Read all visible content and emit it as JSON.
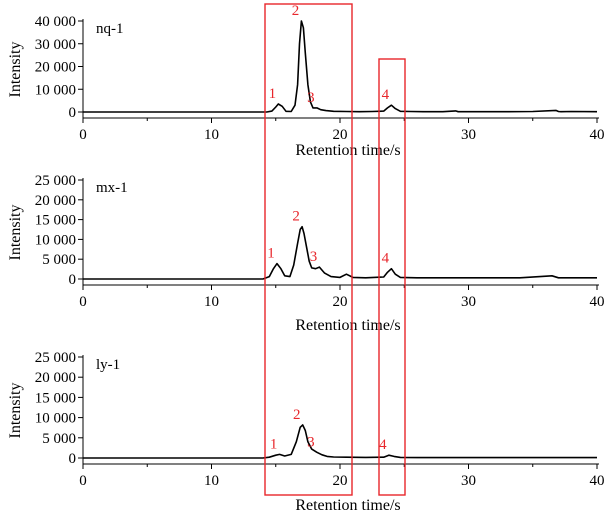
{
  "chart_data": [
    {
      "type": "line",
      "panel_label": "nq-1",
      "xlabel": "Retention time/s",
      "ylabel": "Intensity",
      "xlim": [
        0,
        40
      ],
      "ylim": [
        0,
        40000
      ],
      "x_ticks": [
        0,
        10,
        20,
        30,
        40
      ],
      "x_tick_labels": [
        "0",
        "10",
        "20",
        "30",
        "40"
      ],
      "y_ticks": [
        0,
        10000,
        20000,
        30000,
        40000
      ],
      "y_tick_labels": [
        "0",
        "10 000",
        "20 000",
        "30 000",
        "40 000"
      ],
      "series": [
        {
          "x": [
            0,
            14.3,
            14.7,
            15.0,
            15.2,
            15.5,
            15.8,
            16.2,
            16.5,
            16.7,
            16.85,
            17.0,
            17.15,
            17.3,
            17.5,
            17.7,
            17.9,
            18.2,
            18.5,
            18.9,
            19.5,
            20.5,
            21.5,
            22.5,
            23.4,
            23.7,
            24.0,
            24.3,
            24.7,
            25.5,
            26.5,
            28.0,
            29.0,
            29.2,
            29.5,
            31.0,
            33.0,
            35.0,
            36.8,
            37.0,
            37.2,
            38.0,
            40
          ],
          "y": [
            0,
            0,
            400,
            2200,
            3500,
            2500,
            300,
            200,
            3000,
            12000,
            30000,
            40000,
            37000,
            26000,
            12000,
            4500,
            1800,
            1800,
            1000,
            600,
            300,
            200,
            150,
            200,
            400,
            1800,
            3000,
            1500,
            300,
            200,
            150,
            150,
            500,
            150,
            150,
            150,
            150,
            200,
            700,
            200,
            150,
            200,
            150
          ]
        }
      ],
      "annotations": [
        {
          "text": "1",
          "x": 15.2,
          "y": 3500
        },
        {
          "text": "2",
          "x": 17.0,
          "y": 40000
        },
        {
          "text": "3",
          "x": 18.2,
          "y": 1800
        },
        {
          "text": "4",
          "x": 24.0,
          "y": 3000
        }
      ]
    },
    {
      "type": "line",
      "panel_label": "mx-1",
      "xlabel": "Retention time/s",
      "ylabel": "Intensity",
      "xlim": [
        0,
        40
      ],
      "ylim": [
        0,
        25000
      ],
      "x_ticks": [
        0,
        10,
        20,
        30,
        40
      ],
      "x_tick_labels": [
        "0",
        "10",
        "20",
        "30",
        "40"
      ],
      "y_ticks": [
        0,
        5000,
        10000,
        15000,
        20000,
        25000
      ],
      "y_tick_labels": [
        "0",
        "5 000",
        "10 000",
        "15 000",
        "20 000",
        "25 000"
      ],
      "series": [
        {
          "x": [
            0,
            14.0,
            14.5,
            14.8,
            15.1,
            15.4,
            15.7,
            16.1,
            16.4,
            16.7,
            16.9,
            17.05,
            17.2,
            17.4,
            17.6,
            17.8,
            18.1,
            18.4,
            18.8,
            19.3,
            20.0,
            20.5,
            21.0,
            22.0,
            23.4,
            23.7,
            24.0,
            24.3,
            24.7,
            26.0,
            28.0,
            30.0,
            32.0,
            34.0,
            36.5,
            37.0,
            37.5,
            40
          ],
          "y": [
            0,
            0,
            600,
            2500,
            3900,
            2600,
            800,
            600,
            3500,
            9000,
            12500,
            13200,
            11500,
            8000,
            4500,
            2800,
            2600,
            3000,
            1500,
            600,
            400,
            1200,
            400,
            300,
            500,
            1700,
            2600,
            1200,
            400,
            300,
            300,
            300,
            300,
            300,
            800,
            300,
            300,
            300
          ]
        }
      ],
      "annotations": [
        {
          "text": "1",
          "x": 15.1,
          "y": 3900
        },
        {
          "text": "2",
          "x": 17.05,
          "y": 13200
        },
        {
          "text": "3",
          "x": 18.4,
          "y": 3000
        },
        {
          "text": "4",
          "x": 24.0,
          "y": 2600
        }
      ]
    },
    {
      "type": "line",
      "panel_label": "ly-1",
      "xlabel": "Retention time/s",
      "ylabel": "Intensity",
      "xlim": [
        0,
        40
      ],
      "ylim": [
        0,
        25000
      ],
      "x_ticks": [
        0,
        10,
        20,
        30,
        40
      ],
      "x_tick_labels": [
        "0",
        "10",
        "20",
        "30",
        "40"
      ],
      "y_ticks": [
        0,
        5000,
        10000,
        15000,
        20000,
        25000
      ],
      "y_tick_labels": [
        "0",
        "5 000",
        "10 000",
        "15 000",
        "20 000",
        "25 000"
      ],
      "series": [
        {
          "x": [
            0,
            14.0,
            14.5,
            15.0,
            15.3,
            15.7,
            16.2,
            16.6,
            16.9,
            17.1,
            17.3,
            17.5,
            17.8,
            18.2,
            18.6,
            19.0,
            19.5,
            20.5,
            22.0,
            23.4,
            23.8,
            24.2,
            24.7,
            26.0,
            28.0,
            30.0,
            32.0,
            34.0,
            36.0,
            38.0,
            40
          ],
          "y": [
            0,
            0,
            200,
            700,
            900,
            500,
            900,
            4000,
            7600,
            8200,
            6800,
            4000,
            2200,
            1400,
            800,
            400,
            250,
            200,
            150,
            200,
            700,
            400,
            150,
            100,
            100,
            100,
            100,
            100,
            100,
            100,
            100
          ]
        }
      ],
      "annotations": [
        {
          "text": "1",
          "x": 15.3,
          "y": 900
        },
        {
          "text": "2",
          "x": 17.1,
          "y": 8200
        },
        {
          "text": "3",
          "x": 18.2,
          "y": 1400
        },
        {
          "text": "4",
          "x": 23.8,
          "y": 700
        }
      ]
    }
  ],
  "highlight_color": "#e8262b",
  "line_color": "#000000"
}
